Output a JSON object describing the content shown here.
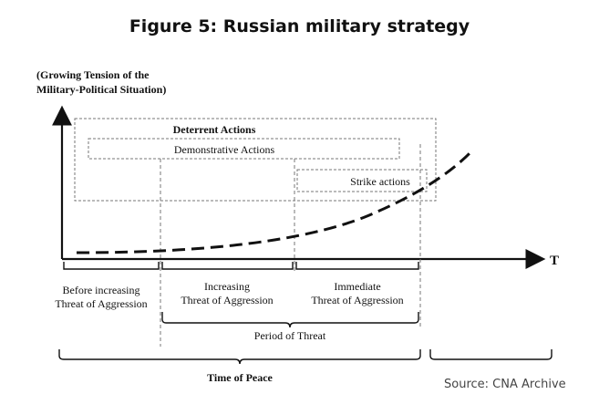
{
  "title": "Figure 5: Russian military strategy",
  "y_axis_label_line1": "(Growing Tension of the",
  "y_axis_label_line2": "Military-Political Situation)",
  "x_axis_label": "T",
  "boxes": {
    "deterrent": "Deterrent  Actions",
    "demonstrative": "Demonstrative Actions",
    "strike": "Strike actions"
  },
  "phases": [
    {
      "line1": "Before increasing",
      "line2": "Threat of Aggression"
    },
    {
      "line1": "Increasing",
      "line2": "Threat of Aggression"
    },
    {
      "line1": "Immediate",
      "line2": "Threat of Aggression"
    }
  ],
  "period_of_threat": "Period of Threat",
  "time_of_peace": "Time of Peace",
  "source": "Source: CNA Archive"
}
